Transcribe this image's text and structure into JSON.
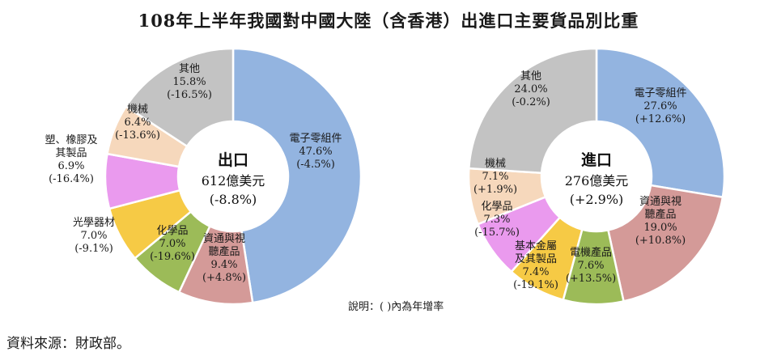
{
  "title": "108年上半年我國對中國大陸（含香港）出進口主要貨品別比重",
  "note": "說明：( )內為年增率",
  "source": "資料來源：財政部。",
  "chart_data": [
    {
      "type": "pie",
      "center_title": "出口",
      "center_value": "612億美元",
      "center_growth": "(-8.8%)",
      "slices": [
        {
          "label": [
            "電子零組件"
          ],
          "share": 47.6,
          "share_text": "47.6%",
          "growth": "(-4.5%)",
          "color": "#93b4e0"
        },
        {
          "label": [
            "資通與視",
            "聽產品"
          ],
          "share": 9.4,
          "share_text": "9.4%",
          "growth": "(+4.8%)",
          "color": "#d49a98"
        },
        {
          "label": [
            "化學品"
          ],
          "share": 7.0,
          "share_text": "7.0%",
          "growth": "(-19.6%)",
          "color": "#9cbb58"
        },
        {
          "label": [
            "光學器材"
          ],
          "share": 7.0,
          "share_text": "7.0%",
          "growth": "(-9.1%)",
          "color": "#f6ca45"
        },
        {
          "label": [
            "塑、橡膠及",
            "其製品"
          ],
          "share": 6.9,
          "share_text": "6.9%",
          "growth": "(-16.4%)",
          "color": "#ea9aee"
        },
        {
          "label": [
            "機械"
          ],
          "share": 6.4,
          "share_text": "6.4%",
          "growth": "(-13.6%)",
          "color": "#f6d8bc"
        },
        {
          "label": [
            "其他"
          ],
          "share": 15.8,
          "share_text": "15.8%",
          "growth": "(-16.5%)",
          "color": "#c3c3c3"
        }
      ]
    },
    {
      "type": "pie",
      "center_title": "進口",
      "center_value": "276億美元",
      "center_growth": "(+2.9%)",
      "slices": [
        {
          "label": [
            "電子零組件"
          ],
          "share": 27.6,
          "share_text": "27.6%",
          "growth": "(+12.6%)",
          "color": "#93b4e0"
        },
        {
          "label": [
            "資通與視",
            "聽產品"
          ],
          "share": 19.0,
          "share_text": "19.0%",
          "growth": "(+10.8%)",
          "color": "#d49a98"
        },
        {
          "label": [
            "電機產品"
          ],
          "share": 7.6,
          "share_text": "7.6%",
          "growth": "(+13.5%)",
          "color": "#9cbb58"
        },
        {
          "label": [
            "基本金屬",
            "及其製品"
          ],
          "share": 7.4,
          "share_text": "7.4%",
          "growth": "(-19.1%)",
          "color": "#f6ca45"
        },
        {
          "label": [
            "化學品"
          ],
          "share": 7.3,
          "share_text": "7.3%",
          "growth": "(-15.7%)",
          "color": "#ea9aee"
        },
        {
          "label": [
            "機械"
          ],
          "share": 7.1,
          "share_text": "7.1%",
          "growth": "(+1.9%)",
          "color": "#f6d8bc"
        },
        {
          "label": [
            "其他"
          ],
          "share": 24.0,
          "share_text": "24.0%",
          "growth": "(-0.2%)",
          "color": "#c3c3c3"
        }
      ]
    }
  ]
}
